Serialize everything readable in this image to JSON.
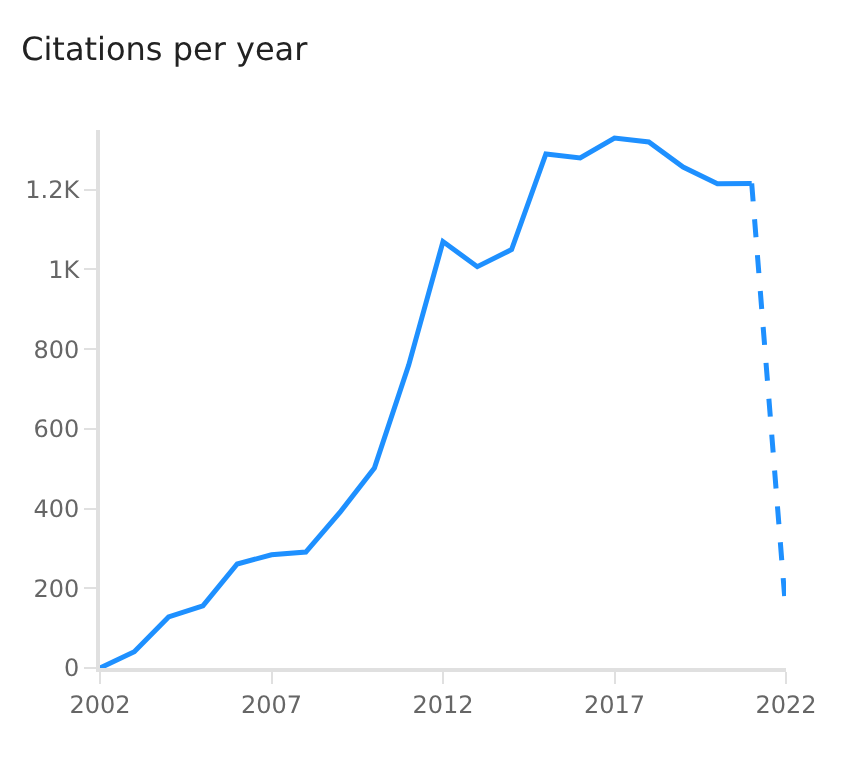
{
  "chart_data": {
    "type": "line",
    "title": "Citations per year",
    "series": [
      {
        "color": "#1e90ff",
        "line_style": "solid",
        "x": [
          2002,
          2003,
          2004,
          2005,
          2006,
          2007,
          2008,
          2009,
          2010,
          2011,
          2012,
          2013,
          2014,
          2015,
          2016,
          2017,
          2018,
          2019,
          2020,
          2021
        ],
        "values": [
          0,
          41,
          128,
          156,
          261,
          284,
          291,
          391,
          502,
          760,
          1070,
          1007,
          1050,
          1290,
          1280,
          1330,
          1320,
          1257,
          1215,
          1216
        ]
      },
      {
        "color": "#1e90ff",
        "line_style": "dashed",
        "x": [
          2021,
          2022
        ],
        "values": [
          1216,
          137
        ]
      }
    ],
    "xlim": [
      2002,
      2022
    ],
    "xticks": [
      2002,
      2007,
      2012,
      2017,
      2022
    ],
    "ylim": [
      0,
      1350
    ],
    "yticks": [
      0,
      200,
      400,
      600,
      800,
      {
        "value": 1000,
        "label": "1K"
      },
      {
        "value": 1200,
        "label": "1.2K"
      }
    ],
    "marker": "none"
  }
}
